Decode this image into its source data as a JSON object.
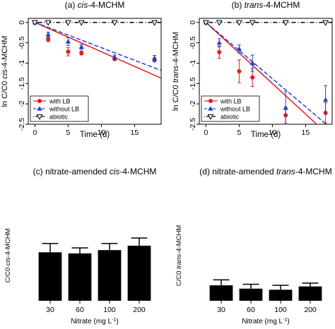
{
  "chart_data": [
    {
      "type": "scatter",
      "title": "(a) cis-4-MCHM",
      "title_parts": [
        "(a) ",
        "cis",
        "-4-MCHM"
      ],
      "xlabel": "Time (d)",
      "ylabel": "ln C/C0 cis-4-MCHM",
      "ylabel_parts": [
        "ln C/C0 ",
        "cis",
        "-4-MCHM"
      ],
      "xlim": [
        -1,
        19
      ],
      "ylim": [
        -2.5,
        0.1
      ],
      "x_ticks": [
        0,
        5,
        10,
        15
      ],
      "y_ticks": [
        0,
        -0.5,
        -1,
        -1.5,
        -2,
        -2.5
      ],
      "legend": [
        "with LB",
        "without LB",
        "abiotic"
      ],
      "legend_position": "bottom-left",
      "series": [
        {
          "name": "with LB",
          "color": "#e31a1c",
          "marker": "circle",
          "x": [
            0,
            2,
            5,
            7,
            12,
            18
          ],
          "y": [
            0,
            -0.42,
            -0.72,
            -0.75,
            -0.9,
            -0.92
          ],
          "err": [
            0.02,
            0.05,
            0.1,
            0.05,
            0.04,
            0.05
          ],
          "fit": {
            "slope": -0.072,
            "intercept": 0,
            "style": "solid"
          }
        },
        {
          "name": "without LB",
          "color": "#1f3fd6",
          "marker": "triangle",
          "x": [
            0,
            2,
            5,
            7,
            12,
            18
          ],
          "y": [
            0,
            -0.3,
            -0.47,
            -0.6,
            -0.85,
            -0.88
          ],
          "err": [
            0.02,
            0.06,
            0.1,
            0.06,
            0.05,
            0.07
          ],
          "fit": {
            "slope": -0.062,
            "intercept": 0,
            "style": "dashed"
          }
        },
        {
          "name": "abiotic",
          "color": "#000000",
          "marker": "triangle-down",
          "x": [
            0,
            2,
            5,
            7,
            12,
            18
          ],
          "y": [
            0,
            0,
            0,
            0,
            0,
            0
          ],
          "err": [
            0,
            0,
            0,
            0,
            0,
            0
          ],
          "fit": {
            "slope": 0,
            "intercept": 0,
            "style": "dotdash"
          }
        }
      ]
    },
    {
      "type": "scatter",
      "title": "(b) trans-4-MCHM",
      "title_parts": [
        "(b) ",
        "trans",
        "-4-MCHM"
      ],
      "xlabel": "Time (d)",
      "ylabel": "ln C/C0 trans-4-MCHM",
      "ylabel_parts": [
        "ln C/C0 ",
        "trans",
        "-4-MCHM"
      ],
      "xlim": [
        -1,
        19
      ],
      "ylim": [
        -2.5,
        0.1
      ],
      "x_ticks": [
        0,
        5,
        10,
        15
      ],
      "y_ticks": [
        0,
        -0.5,
        -1,
        -1.5,
        -2,
        -2.5
      ],
      "legend": [
        "with LB",
        "without LB",
        "abiotic"
      ],
      "legend_position": "bottom-left",
      "series": [
        {
          "name": "with LB",
          "color": "#e31a1c",
          "marker": "circle",
          "x": [
            0,
            2,
            5,
            7,
            12,
            18
          ],
          "y": [
            0,
            -0.73,
            -1.2,
            -1.35,
            -2.28,
            -2.22
          ],
          "err": [
            0.02,
            0.15,
            0.28,
            0.22,
            0.2,
            0.25
          ],
          "fit": {
            "slope": -0.15,
            "intercept": 0,
            "style": "solid"
          }
        },
        {
          "name": "without LB",
          "color": "#1f3fd6",
          "marker": "triangle",
          "x": [
            0,
            2,
            5,
            7,
            12,
            18
          ],
          "y": [
            0,
            -0.5,
            -0.65,
            -1.0,
            -2.1,
            -1.9
          ],
          "err": [
            0.02,
            0.1,
            0.1,
            0.2,
            0.4,
            0.35
          ],
          "fit": {
            "slope": -0.138,
            "intercept": 0,
            "style": "dashed"
          }
        },
        {
          "name": "abiotic",
          "color": "#000000",
          "marker": "triangle-down",
          "x": [
            0,
            2,
            5,
            7,
            12,
            18
          ],
          "y": [
            0,
            0,
            0,
            0,
            0,
            0
          ],
          "err": [
            0,
            0,
            0,
            0,
            0,
            0
          ],
          "fit": {
            "slope": 0,
            "intercept": 0,
            "style": "dotdash"
          }
        }
      ]
    },
    {
      "type": "bar",
      "title": "(c) nitrate-amended cis-4-MCHM",
      "title_parts": [
        "(c) nitrate-amended ",
        "cis",
        "-4-MCHM"
      ],
      "xlabel": "Nitrate (mg L-1)",
      "xlabel_parts": [
        "Nitrate (mg L",
        "-1",
        ")"
      ],
      "ylabel": "C/C0 cis-4-MCHM",
      "ylabel_parts": [
        "C/C0 ",
        "cis",
        "-4-MCHM"
      ],
      "ylim": [
        0,
        1
      ],
      "categories": [
        "30",
        "60",
        "100",
        "200"
      ],
      "values": [
        0.44,
        0.43,
        0.46,
        0.5
      ],
      "err": [
        0.08,
        0.05,
        0.06,
        0.07
      ],
      "color": "#000000"
    },
    {
      "type": "bar",
      "title": "(d) nitrate-amended trans-4-MCHM",
      "title_parts": [
        "(d) nitrate-amended ",
        "trans",
        "-4-MCHM"
      ],
      "xlabel": "Nitrate (mg L-1)",
      "xlabel_parts": [
        "Nitrate (mg L",
        "-1",
        ")"
      ],
      "ylabel": "C/C0 trans-4-MCHM",
      "ylabel_parts": [
        "C/C0 ",
        "trans",
        "-4-MCHM"
      ],
      "ylim": [
        0,
        1
      ],
      "categories": [
        "30",
        "60",
        "100",
        "200"
      ],
      "values": [
        0.14,
        0.11,
        0.1,
        0.13
      ],
      "err": [
        0.05,
        0.04,
        0.04,
        0.03
      ],
      "color": "#000000"
    }
  ]
}
